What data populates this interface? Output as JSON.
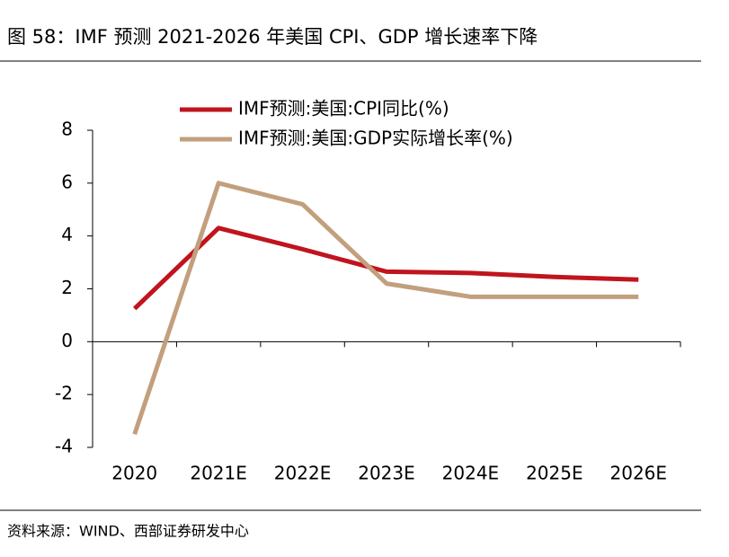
{
  "header": {
    "title": "图 58：IMF 预测 2021-2026 年美国 CPI、GDP 增长速率下降"
  },
  "chart_data": {
    "type": "line",
    "categories": [
      "2020",
      "2021E",
      "2022E",
      "2023E",
      "2024E",
      "2025E",
      "2026E"
    ],
    "series": [
      {
        "name": "IMF预测:美国:CPI同比(%)",
        "color": "#c0141e",
        "values": [
          1.25,
          4.3,
          3.5,
          2.65,
          2.6,
          2.45,
          2.35
        ]
      },
      {
        "name": "IMF预测:美国:GDP实际增长率(%)",
        "color": "#c29f7d",
        "values": [
          -3.5,
          6.0,
          5.2,
          2.2,
          1.7,
          1.7,
          1.7
        ]
      }
    ],
    "ylim": [
      -4,
      8
    ],
    "yticks": [
      -4,
      -2,
      0,
      2,
      4,
      6,
      8
    ],
    "grid": false
  },
  "footer": {
    "source": "资料来源：WIND、西部证券研发中心"
  }
}
